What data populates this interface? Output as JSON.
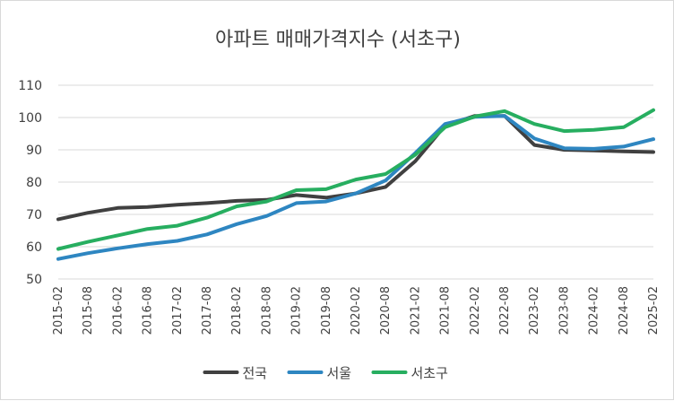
{
  "chart_data": {
    "type": "line",
    "title": "아파트 매매가격지수 (서초구)",
    "xlabel": "",
    "ylabel": "",
    "ylim": [
      50,
      110
    ],
    "yticks": [
      50,
      60,
      70,
      80,
      90,
      100,
      110
    ],
    "grid": true,
    "legend": "bottom",
    "x": [
      "2015-02",
      "2015-08",
      "2016-02",
      "2016-08",
      "2017-02",
      "2017-08",
      "2018-02",
      "2018-08",
      "2019-02",
      "2019-08",
      "2020-02",
      "2020-08",
      "2021-02",
      "2021-08",
      "2022-02",
      "2022-08",
      "2023-02",
      "2023-08",
      "2024-02",
      "2024-08",
      "2025-02"
    ],
    "series": [
      {
        "name": "전국",
        "color": "#404040",
        "values": [
          68.5,
          70.5,
          72.0,
          72.3,
          73.0,
          73.5,
          74.2,
          74.5,
          76.0,
          75.2,
          76.5,
          78.5,
          86.5,
          97.5,
          100.5,
          100.5,
          91.5,
          90.0,
          89.8,
          89.5,
          89.3
        ]
      },
      {
        "name": "서울",
        "color": "#2e86c1",
        "values": [
          56.2,
          58.0,
          59.5,
          60.8,
          61.8,
          63.8,
          67.0,
          69.5,
          73.5,
          74.0,
          76.5,
          80.5,
          89.0,
          98.0,
          100.2,
          100.5,
          93.5,
          90.5,
          90.3,
          91.0,
          93.3
        ]
      },
      {
        "name": "서초구",
        "color": "#27ae60",
        "values": [
          59.3,
          61.5,
          63.5,
          65.5,
          66.5,
          69.0,
          72.5,
          74.0,
          77.5,
          77.8,
          80.8,
          82.5,
          88.5,
          97.0,
          100.3,
          102.0,
          98.0,
          95.8,
          96.2,
          97.0,
          102.3
        ]
      }
    ]
  }
}
